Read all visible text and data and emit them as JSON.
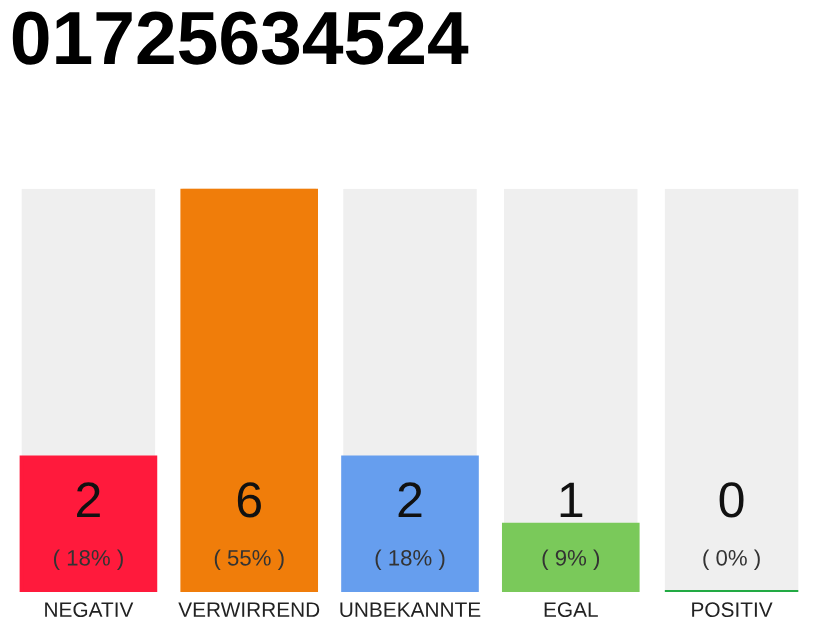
{
  "chart_data": {
    "type": "bar",
    "title": "01725634524",
    "categories": [
      "NEGATIV",
      "VERWIRREND",
      "UNBEKANNTE",
      "EGAL",
      "POSITIV"
    ],
    "values": [
      2,
      6,
      2,
      1,
      0
    ],
    "colors": [
      "#ff1a3c",
      "#f07d0a",
      "#669eee",
      "#7ac95a",
      "#22aa44"
    ],
    "value_labels": [
      "2\n( 18% )",
      "6\n( 55% )",
      "2\n( 18% )",
      "1\n( 9% )",
      "0\n( 0% )"
    ],
    "ylim": [
      0,
      6
    ],
    "tick_labels": "x",
    "grid": false,
    "legend": false
  }
}
